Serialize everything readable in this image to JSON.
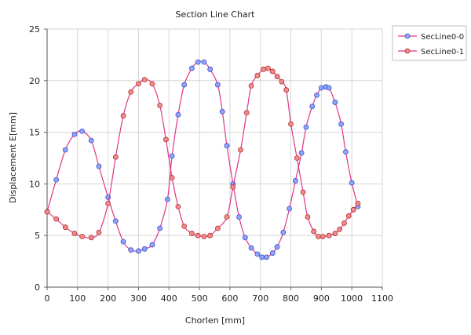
{
  "chart_data": {
    "type": "line",
    "title": "Section Line Chart",
    "xlabel": "Chorlen [mm]",
    "ylabel": "Displacement E[mm]",
    "xlim": [
      0,
      1100
    ],
    "ylim": [
      0,
      25
    ],
    "xticks": [
      0,
      100,
      200,
      300,
      400,
      500,
      600,
      700,
      800,
      900,
      1000,
      1100
    ],
    "yticks": [
      0,
      5,
      10,
      15,
      20,
      25
    ],
    "grid": true,
    "legend_position": "top-right",
    "line_color": "#e0358a",
    "series": [
      {
        "name": "SecLine0-0",
        "marker_fill": "#8fa4ff",
        "marker_stroke": "#3f4fbd",
        "x": [
          0,
          30,
          60,
          90,
          115,
          145,
          170,
          200,
          225,
          250,
          275,
          300,
          320,
          345,
          370,
          395,
          410,
          430,
          450,
          475,
          495,
          515,
          535,
          560,
          575,
          590,
          610,
          630,
          650,
          670,
          690,
          705,
          720,
          740,
          755,
          775,
          795,
          815,
          835,
          850,
          870,
          885,
          900,
          915,
          925,
          945,
          965,
          980,
          1000,
          1020
        ],
        "y": [
          7.3,
          10.4,
          13.3,
          14.8,
          15.1,
          14.2,
          11.7,
          8.7,
          6.4,
          4.4,
          3.6,
          3.5,
          3.7,
          4.1,
          5.7,
          8.5,
          12.7,
          16.7,
          19.6,
          21.2,
          21.8,
          21.8,
          21.1,
          19.6,
          17.0,
          13.7,
          10.0,
          6.8,
          4.8,
          3.8,
          3.2,
          2.9,
          2.9,
          3.3,
          3.9,
          5.3,
          7.6,
          10.3,
          13.0,
          15.5,
          17.5,
          18.6,
          19.3,
          19.4,
          19.3,
          17.9,
          15.8,
          13.1,
          10.1,
          7.8
        ]
      },
      {
        "name": "SecLine0-1",
        "marker_fill": "#f28b8b",
        "marker_stroke": "#b03030",
        "x": [
          0,
          30,
          60,
          90,
          115,
          145,
          170,
          200,
          225,
          250,
          275,
          300,
          320,
          345,
          370,
          390,
          410,
          430,
          450,
          475,
          495,
          515,
          535,
          560,
          590,
          610,
          635,
          655,
          670,
          690,
          710,
          725,
          740,
          755,
          770,
          785,
          800,
          820,
          840,
          855,
          875,
          890,
          905,
          925,
          945,
          960,
          975,
          990,
          1005,
          1020
        ],
        "y": [
          7.3,
          6.6,
          5.8,
          5.2,
          4.9,
          4.8,
          5.3,
          8.1,
          12.6,
          16.6,
          18.9,
          19.7,
          20.1,
          19.7,
          17.6,
          14.3,
          10.6,
          7.8,
          5.9,
          5.2,
          5.0,
          4.9,
          5.0,
          5.7,
          6.8,
          9.7,
          13.3,
          16.9,
          19.5,
          20.5,
          21.1,
          21.2,
          20.9,
          20.4,
          19.9,
          19.1,
          15.8,
          12.5,
          9.2,
          6.8,
          5.4,
          4.9,
          4.9,
          5.0,
          5.2,
          5.6,
          6.2,
          6.9,
          7.5,
          8.1
        ]
      }
    ]
  }
}
